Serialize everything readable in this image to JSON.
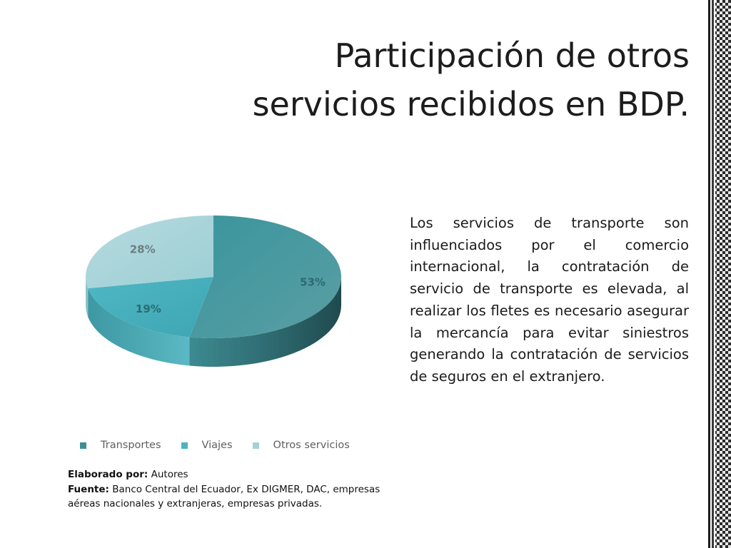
{
  "slide": {
    "title_line1": "Participación de otros",
    "title_line2": "servicios recibidos en BDP.",
    "body": "Los servicios de transporte son influenciados por el comercio internacional, la contratación de servicio de transporte es elevada, al realizar los fletes es necesario asegurar la mercancía para evitar siniestros generando la contratación de servicios de seguros en el extranjero.",
    "source": {
      "elaborado_label": "Elaborado por:",
      "elaborado_value": " Autores",
      "fuente_label": "Fuente:",
      "fuente_value": " Banco Central del Ecuador, Ex DIGMER, DAC, empresas aéreas nacionales y extranjeras, empresas privadas."
    }
  },
  "chart_data": {
    "type": "pie",
    "categories": [
      "Transportes",
      "Viajes",
      "Otros servicios"
    ],
    "values": [
      53,
      19,
      28
    ],
    "labels": [
      "53%",
      "19%",
      "28%"
    ],
    "colors": [
      "#3a8f97",
      "#4db3c0",
      "#a4d2d7"
    ],
    "legend_position": "bottom"
  }
}
